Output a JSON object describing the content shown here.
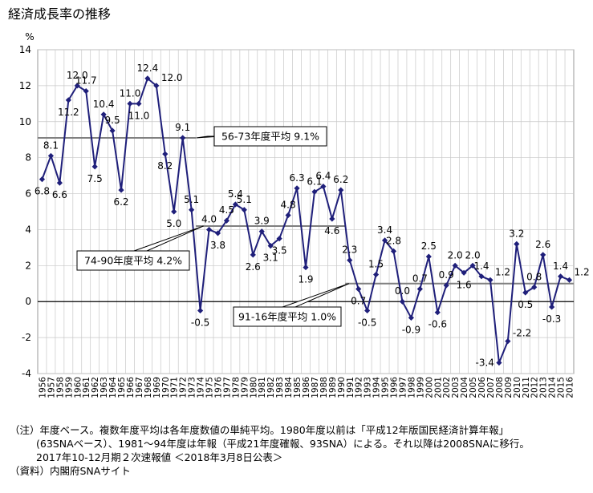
{
  "title": "経済成長率の推移",
  "chart_data": {
    "type": "line",
    "ylabel": "%",
    "ylim": [
      -4,
      14
    ],
    "yticks": [
      14,
      12,
      10,
      8,
      6,
      4,
      2,
      0,
      -2,
      -4
    ],
    "grid": true,
    "x": [
      1956,
      1957,
      1958,
      1959,
      1960,
      1961,
      1962,
      1963,
      1964,
      1965,
      1966,
      1967,
      1968,
      1969,
      1970,
      1971,
      1972,
      1973,
      1974,
      1975,
      1976,
      1977,
      1978,
      1979,
      1980,
      1981,
      1982,
      1983,
      1984,
      1985,
      1986,
      1987,
      1988,
      1989,
      1990,
      1991,
      1992,
      1993,
      1994,
      1995,
      1996,
      1997,
      1998,
      1999,
      2000,
      2001,
      2002,
      2003,
      2004,
      2005,
      2006,
      2007,
      2008,
      2009,
      2010,
      2011,
      2012,
      2013,
      2014,
      2015,
      2016
    ],
    "values": [
      6.8,
      8.1,
      6.6,
      11.2,
      12.0,
      11.7,
      7.5,
      10.4,
      9.5,
      6.2,
      11.0,
      11.0,
      12.4,
      12.0,
      8.2,
      5.0,
      9.1,
      5.1,
      -0.5,
      4.0,
      3.8,
      4.5,
      5.4,
      5.1,
      2.6,
      3.9,
      3.1,
      3.5,
      4.8,
      6.3,
      1.9,
      6.1,
      6.4,
      4.6,
      6.2,
      2.3,
      0.7,
      -0.5,
      1.5,
      3.4,
      2.8,
      0.0,
      -0.9,
      0.7,
      2.5,
      -0.6,
      0.9,
      2.0,
      1.6,
      2.0,
      1.4,
      1.2,
      -3.4,
      -2.2,
      3.2,
      0.5,
      0.8,
      2.6,
      -0.3,
      1.4,
      1.2
    ],
    "data_labels": [
      "6.8",
      "8.1",
      "6.6",
      "11.2",
      "12.0",
      "11.7",
      "7.5",
      "10.4",
      "9.5",
      "6.2",
      "11.0",
      "11.0",
      "12.4",
      "12.0",
      "8.2",
      "5.0",
      "9.1",
      "5.1",
      "-0.5",
      "4.0",
      "3.8",
      "4.5",
      "5.4",
      "5.1",
      "2.6",
      "3.9",
      "3.1",
      "3.5",
      "4.8",
      "6.3",
      "1.9",
      "6.1",
      "6.4",
      "4.6",
      "6.2",
      "2.3",
      "0.7",
      "-0.5",
      "1.5",
      "3.4",
      "2.8",
      "0.0",
      "-0.9",
      "0.7",
      "2.5",
      "-0.6",
      "0.9",
      "2.0",
      "1.6",
      "2.0",
      "1.4",
      "1.2",
      "-3.4",
      "-2.2",
      "3.2",
      "0.5",
      "0.8",
      "2.6",
      "-0.3",
      "1.4",
      "1.2"
    ],
    "label_position": [
      "b",
      "t",
      "b",
      "b",
      "t",
      "t",
      "b",
      "t",
      "t",
      "b",
      "t",
      "b",
      "t",
      "r",
      "b",
      "b",
      "t",
      "t",
      "b",
      "t",
      "b",
      "t",
      "t",
      "t",
      "b",
      "t",
      "b",
      "b",
      "t",
      "t",
      "b",
      "t",
      "t",
      "b",
      "t",
      "t",
      "b",
      "b",
      "t",
      "t",
      "t",
      "t",
      "b",
      "t",
      "t",
      "b",
      "t",
      "t",
      "b",
      "t",
      "t",
      "r",
      "l",
      "r",
      "t",
      "b",
      "t",
      "t",
      "b",
      "t",
      "r"
    ],
    "averages": [
      {
        "from": 1956,
        "to": 1973,
        "value": 9.1,
        "label": "56-73年度平均 9.1%"
      },
      {
        "from": 1974,
        "to": 1990,
        "value": 4.2,
        "label": "74-90年度平均 4.2%"
      },
      {
        "from": 1991,
        "to": 2016,
        "value": 1.0,
        "label": "91-16年度平均 1.0%"
      }
    ],
    "line_color": "#1f1f7a",
    "average_color": "#808080"
  },
  "notes": {
    "line1": "（注）年度ベース。複数年度平均は各年度数値の単純平均。1980年度以前は「平成12年版国民経済計算年報」",
    "line2": "(63SNAベース）、1981～94年度は年報（平成21年度確報、93SNA）による。それ以降は2008SNAに移行。",
    "line3": "2017年10-12月期２次速報値 ＜2018年3月8日公表＞",
    "source": "（資料）内閣府SNAサイト"
  }
}
